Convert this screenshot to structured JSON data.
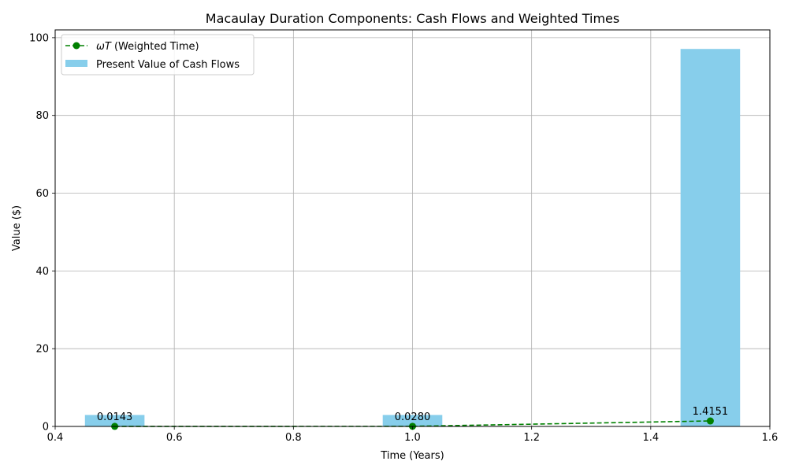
{
  "chart_data": {
    "type": "bar",
    "title": "Macaulay Duration Components: Cash Flows and Weighted Times",
    "xlabel": "Time (Years)",
    "ylabel": "Value ($)",
    "xlim": [
      0.4,
      1.6
    ],
    "ylim": [
      0,
      102
    ],
    "xticks": [
      "0.4",
      "0.6",
      "0.8",
      "1.0",
      "1.2",
      "1.4",
      "1.6"
    ],
    "yticks": [
      "0",
      "20",
      "40",
      "60",
      "80",
      "100"
    ],
    "grid": true,
    "legend_position": "upper-left",
    "x": [
      0.5,
      1.0,
      1.5
    ],
    "bar_width": 0.1,
    "series": [
      {
        "name": "Present Value of Cash Flows",
        "kind": "bar",
        "color": "#87ceeb",
        "values": [
          2.95,
          2.95,
          97.1
        ]
      },
      {
        "name_symbol": "ωT",
        "name_suffix": " (Weighted Time)",
        "kind": "line",
        "style": "dashed",
        "marker": "circle",
        "color": "#008000",
        "values": [
          0.0143,
          0.028,
          1.4151
        ]
      }
    ],
    "annotations": [
      "0.0143",
      "0.0280",
      "1.4151"
    ]
  }
}
